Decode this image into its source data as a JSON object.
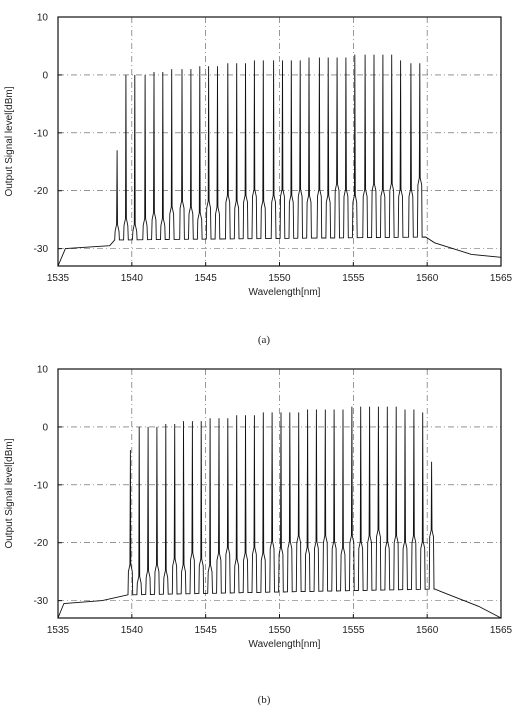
{
  "chart_data": [
    {
      "type": "line",
      "title": "",
      "xlabel": "Wavelength[nm]",
      "ylabel": "Output Signal level[dBm]",
      "xlim": [
        1535,
        1565
      ],
      "ylim": [
        -33,
        10
      ],
      "xticks": [
        1535,
        1540,
        1545,
        1550,
        1555,
        1560,
        1565
      ],
      "yticks": [
        10,
        0,
        -10,
        -20,
        -30
      ],
      "grid": "dash-dot",
      "series": [
        {
          "channel_wavelengths_nm": [
            1539.0,
            1539.6,
            1540.2,
            1540.9,
            1541.5,
            1542.1,
            1542.7,
            1543.4,
            1544.0,
            1544.6,
            1545.2,
            1545.8,
            1546.5,
            1547.1,
            1547.7,
            1548.3,
            1548.9,
            1549.6,
            1550.2,
            1550.8,
            1551.4,
            1552.0,
            1552.7,
            1553.3,
            1553.9,
            1554.5,
            1555.1,
            1555.8,
            1556.4,
            1557.0,
            1557.6,
            1558.2,
            1558.9,
            1559.5
          ],
          "peak_levels_dBm": [
            -13,
            0,
            0,
            0,
            0.5,
            0.5,
            1,
            1,
            1,
            1.5,
            1.5,
            1.5,
            2,
            2,
            2,
            2.5,
            2.5,
            2.5,
            2.5,
            2.5,
            2.5,
            3,
            3,
            3,
            3,
            3,
            3.5,
            3.5,
            3.5,
            3.5,
            3.5,
            2.5,
            2,
            2
          ],
          "shoulder_levels_dBm": [
            -27,
            -26,
            -27,
            -26,
            -25,
            -26,
            -24,
            -23,
            -24,
            -25,
            -23,
            -24,
            -22,
            -23,
            -22,
            -21,
            -23,
            -22,
            -21,
            -22,
            -21,
            -22,
            -21,
            -22,
            -20,
            -21,
            -22,
            -21,
            -20,
            -21,
            -20,
            -21,
            -21,
            -19
          ],
          "noise_floor_dBm": [
            [
              1535,
              -33
            ],
            [
              1535.5,
              -30
            ],
            [
              1538.5,
              -29.5
            ],
            [
              1539,
              -28.5
            ],
            [
              1559.9,
              -28
            ],
            [
              1560.5,
              -29
            ],
            [
              1563,
              -31
            ],
            [
              1565,
              -31.5
            ]
          ]
        }
      ]
    },
    {
      "type": "line",
      "title": "",
      "xlabel": "Wavelength[nm]",
      "ylabel": "Output Signal level[dBm]",
      "xlim": [
        1535,
        1565
      ],
      "ylim": [
        -33,
        10
      ],
      "xticks": [
        1535,
        1540,
        1545,
        1550,
        1555,
        1560,
        1565
      ],
      "yticks": [
        10,
        0,
        -10,
        -20,
        -30
      ],
      "grid": "dash-dot",
      "series": [
        {
          "channel_wavelengths_nm": [
            1539.9,
            1540.5,
            1541.1,
            1541.7,
            1542.3,
            1542.9,
            1543.5,
            1544.1,
            1544.7,
            1545.3,
            1545.9,
            1546.5,
            1547.1,
            1547.7,
            1548.3,
            1548.9,
            1549.5,
            1550.1,
            1550.7,
            1551.3,
            1551.9,
            1552.5,
            1553.1,
            1553.7,
            1554.3,
            1554.9,
            1555.5,
            1556.1,
            1556.7,
            1557.3,
            1557.9,
            1558.5,
            1559.1,
            1559.7,
            1560.3
          ],
          "peak_levels_dBm": [
            -4,
            0,
            0,
            0,
            0.5,
            0.5,
            1,
            1,
            1,
            1.5,
            1.5,
            1.5,
            2,
            2,
            2,
            2.5,
            2.5,
            2.5,
            2.5,
            2.5,
            3,
            3,
            3,
            3,
            3,
            3.5,
            3.5,
            3.5,
            3.5,
            3.5,
            3.5,
            3,
            3,
            2.5,
            -6
          ],
          "shoulder_levels_dBm": [
            -25,
            -27,
            -26,
            -25,
            -26,
            -24,
            -25,
            -23,
            -24,
            -25,
            -23,
            -22,
            -24,
            -23,
            -22,
            -23,
            -21,
            -22,
            -21,
            -20,
            -22,
            -21,
            -20,
            -21,
            -22,
            -20,
            -21,
            -20,
            -19,
            -21,
            -20,
            -21,
            -20,
            -21,
            -19
          ],
          "noise_floor_dBm": [
            [
              1535,
              -33
            ],
            [
              1535.4,
              -30.5
            ],
            [
              1538,
              -30
            ],
            [
              1539.9,
              -29
            ],
            [
              1560.5,
              -28
            ],
            [
              1561,
              -28.5
            ],
            [
              1563.5,
              -31
            ],
            [
              1565,
              -33
            ]
          ]
        }
      ]
    }
  ],
  "captions": {
    "a": "(a)",
    "b": "(b)"
  }
}
